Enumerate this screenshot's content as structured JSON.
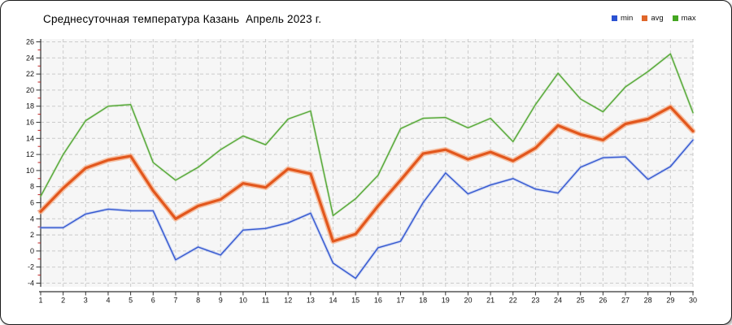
{
  "title": "Среднесуточная температура Казань  Апрель 2023 г.",
  "legend": {
    "position": "top-right",
    "items": [
      {
        "label": "min",
        "color": "#2b52d2"
      },
      {
        "label": "avg",
        "color": "#e0662a"
      },
      {
        "label": "max",
        "color": "#44a621"
      }
    ]
  },
  "axes": {
    "y_ticks": [
      26,
      24,
      22,
      20,
      18,
      16,
      14,
      12,
      10,
      8,
      6,
      4,
      2,
      0,
      -2,
      -4
    ],
    "x_ticks": [
      1,
      2,
      3,
      4,
      5,
      6,
      7,
      8,
      9,
      10,
      11,
      12,
      13,
      14,
      15,
      16,
      17,
      18,
      19,
      20,
      21,
      22,
      23,
      24,
      25,
      26,
      27,
      28,
      29,
      30
    ],
    "minor_tick_color": "#bb2222",
    "axis_color": "#333333",
    "gridline_color": "#cbcbcb",
    "plot_background": "#f6f6f6"
  },
  "chart_data": {
    "type": "line",
    "title": "Среднесуточная температура Казань  Апрель 2023 г.",
    "xlabel": "",
    "ylabel": "",
    "x": [
      1,
      2,
      3,
      4,
      5,
      6,
      7,
      8,
      9,
      10,
      11,
      12,
      13,
      14,
      15,
      16,
      17,
      18,
      19,
      20,
      21,
      22,
      23,
      24,
      25,
      26,
      27,
      28,
      29,
      30
    ],
    "xlim": [
      1,
      30
    ],
    "ylim": [
      -4,
      26
    ],
    "ytick_step": 2,
    "grid": true,
    "legend_position": "top-right",
    "series": [
      {
        "name": "min",
        "color": "#3558cf",
        "halo": "rgba(120,150,235,0.35)",
        "halo_width": 3.5,
        "width": 1.4,
        "values": [
          2.9,
          2.9,
          4.6,
          5.2,
          5.0,
          5.0,
          -1.1,
          0.5,
          -0.5,
          2.6,
          2.8,
          3.5,
          4.7,
          -1.5,
          -3.4,
          0.4,
          1.2,
          6.0,
          9.7,
          7.1,
          8.2,
          9.0,
          7.7,
          7.2,
          10.4,
          11.6,
          11.7,
          8.9,
          10.5,
          13.8
        ]
      },
      {
        "name": "avg",
        "color": "#e2571d",
        "halo": "rgba(246,179,142,0.8)",
        "halo_width": 6.5,
        "width": 3.2,
        "values": [
          4.9,
          7.8,
          10.3,
          11.3,
          11.8,
          7.5,
          4.0,
          5.6,
          6.4,
          8.4,
          7.9,
          10.2,
          9.6,
          1.2,
          2.1,
          5.6,
          8.8,
          12.1,
          12.6,
          11.4,
          12.3,
          11.2,
          12.8,
          15.6,
          14.5,
          13.8,
          15.8,
          16.4,
          17.9,
          14.9
        ]
      },
      {
        "name": "max",
        "color": "#56a839",
        "halo": "rgba(140,200,110,0.3)",
        "halo_width": 3,
        "width": 1.4,
        "values": [
          6.8,
          12.0,
          16.2,
          18.0,
          18.2,
          11.0,
          8.8,
          10.4,
          12.6,
          14.3,
          13.2,
          16.4,
          17.4,
          4.4,
          6.5,
          9.4,
          15.2,
          16.5,
          16.6,
          15.3,
          16.5,
          13.6,
          18.2,
          22.1,
          18.9,
          17.3,
          20.4,
          22.3,
          24.5,
          17.2
        ]
      }
    ]
  }
}
